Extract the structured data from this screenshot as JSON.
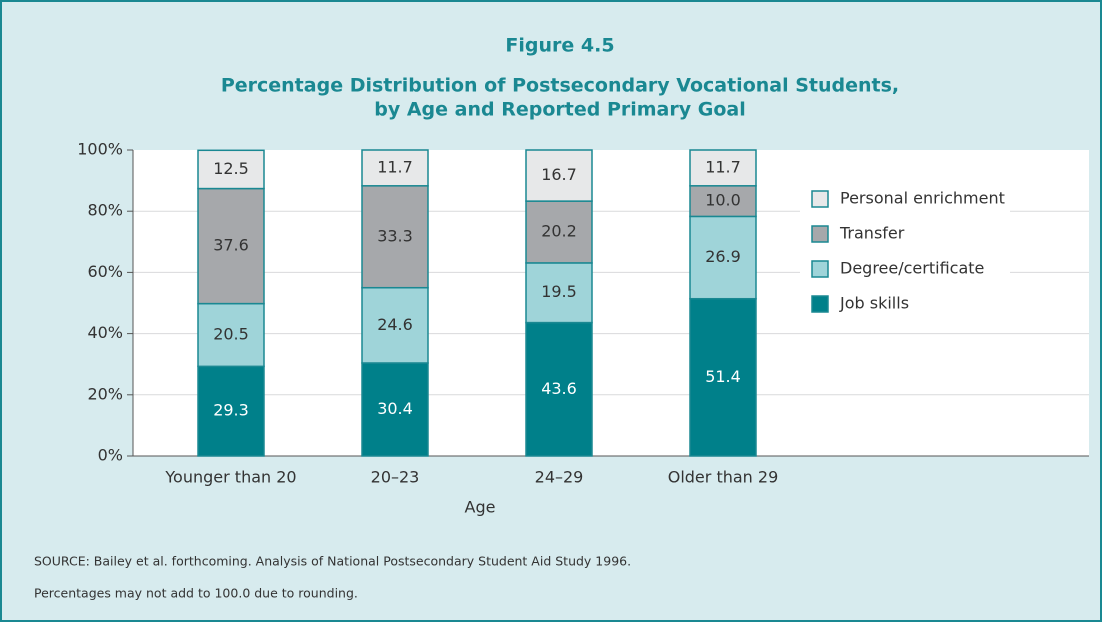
{
  "chart_data": {
    "type": "stacked-bar",
    "title": "Figure 4.5",
    "subtitle": "Percentage Distribution of Postsecondary Vocational Students,",
    "subtitle2": "by Age and Reported Primary Goal",
    "x_label": "Age",
    "categories": [
      "Younger than 20",
      "20–23",
      "24–29",
      "Older than 29"
    ],
    "series": [
      {
        "name": "Job skills",
        "color": "#00808a",
        "values": [
          29.3,
          30.4,
          43.6,
          51.4
        ]
      },
      {
        "name": "Degree/certificate",
        "color": "#9fd4d9",
        "values": [
          20.5,
          24.6,
          19.5,
          26.9
        ]
      },
      {
        "name": "Transfer",
        "color": "#a6a8ab",
        "values": [
          37.6,
          33.3,
          20.2,
          10.0
        ],
        "value_labels": [
          "37.6",
          "33.3",
          "20.2",
          "10.0"
        ]
      },
      {
        "name": "Personal enrichment",
        "color": "#e7e8e9",
        "values": [
          12.5,
          11.7,
          16.7,
          11.7
        ]
      }
    ],
    "ylim": [
      0,
      100
    ],
    "yticks": [
      {
        "value": 0,
        "label": "0%"
      },
      {
        "value": 20,
        "label": "20%"
      },
      {
        "value": 40,
        "label": "40%"
      },
      {
        "value": 60,
        "label": "60%"
      },
      {
        "value": 80,
        "label": "80%"
      },
      {
        "value": 100,
        "label": "100%"
      }
    ],
    "grid": true,
    "legend": "right",
    "notes": [
      "SOURCE: Bailey et al. forthcoming. Analysis of National Postsecondary Student Aid Study 1996.",
      "Percentages may not add to 100.0 due to rounding."
    ]
  }
}
